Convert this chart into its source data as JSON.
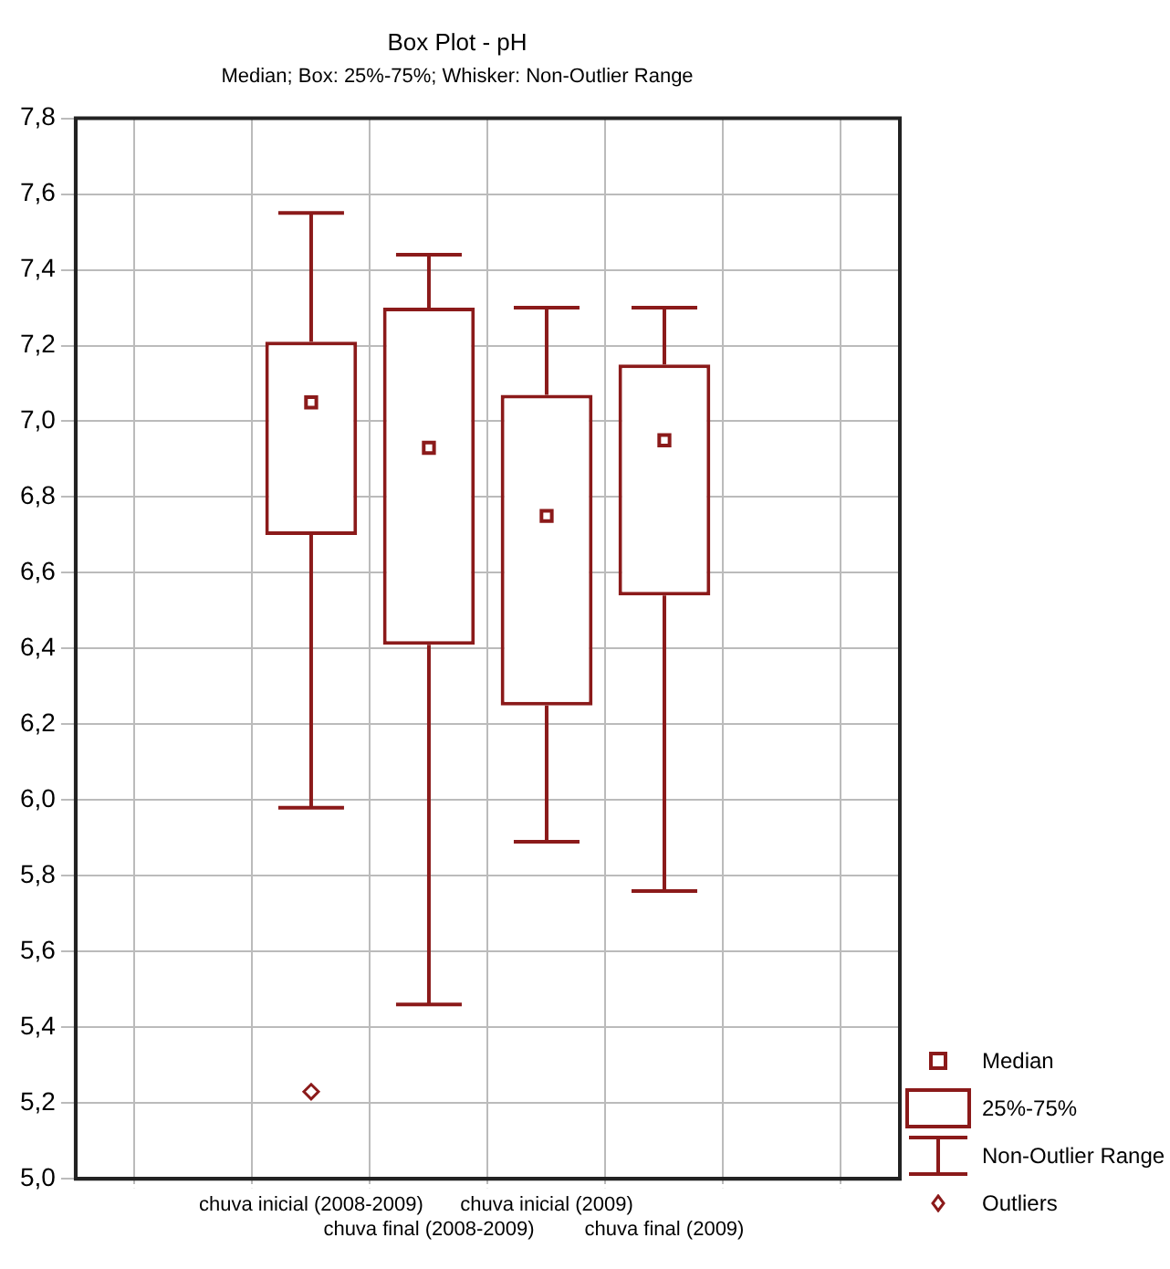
{
  "chart_data": {
    "type": "box",
    "title": "Box Plot - pH",
    "subtitle": "Median; Box: 25%-75%; Whisker: Non-Outlier Range",
    "categories": [
      null,
      null,
      "chuva inicial (2008-2009)",
      "chuva final (2008-2009)",
      "chuva inicial (2009)",
      "chuva final (2009)",
      null,
      null
    ],
    "boxes": [
      null,
      null,
      {
        "low": 5.98,
        "q1": 6.7,
        "median": 7.05,
        "q3": 7.21,
        "high": 7.55,
        "outliers": [
          5.23
        ]
      },
      {
        "low": 5.46,
        "q1": 6.41,
        "median": 6.93,
        "q3": 7.3,
        "high": 7.44
      },
      {
        "low": 5.89,
        "q1": 6.25,
        "median": 6.75,
        "q3": 7.07,
        "high": 7.3
      },
      {
        "low": 5.76,
        "q1": 6.54,
        "median": 6.95,
        "q3": 7.15,
        "high": 7.3
      },
      null,
      null
    ],
    "color": "#8b1a1a",
    "ylim": [
      5.0,
      7.8
    ],
    "yticks": [
      {
        "value": 5.0,
        "label": "5,0"
      },
      {
        "value": 5.2,
        "label": "5,2"
      },
      {
        "value": 5.4,
        "label": "5,4"
      },
      {
        "value": 5.6,
        "label": "5,6"
      },
      {
        "value": 5.8,
        "label": "5,8"
      },
      {
        "value": 6.0,
        "label": "6,0"
      },
      {
        "value": 6.2,
        "label": "6,2"
      },
      {
        "value": 6.4,
        "label": "6,4"
      },
      {
        "value": 6.6,
        "label": "6,6"
      },
      {
        "value": 6.8,
        "label": "6,8"
      },
      {
        "value": 7.0,
        "label": "7,0"
      },
      {
        "value": 7.2,
        "label": "7,2"
      },
      {
        "value": 7.4,
        "label": "7,4"
      },
      {
        "value": 7.6,
        "label": "7,6"
      },
      {
        "value": 7.8,
        "label": "7,8"
      }
    ],
    "grid": true,
    "annotations": [
      "Median",
      "25%-75%",
      "Non-Outlier Range",
      "Outliers"
    ]
  }
}
